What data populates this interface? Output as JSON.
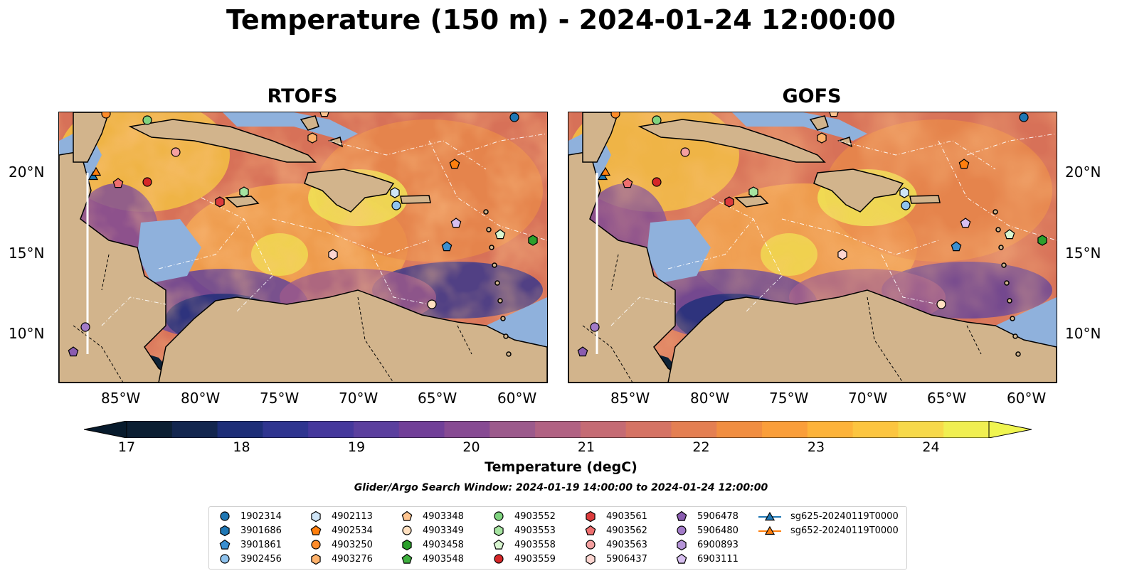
{
  "figure": {
    "title": "Temperature (150 m) - 2024-01-24 12:00:00",
    "search_window": "Glider/Argo Search Window: 2024-01-19 14:00:00 to 2024-01-24 12:00:00"
  },
  "panels": [
    {
      "title": "RTOFS"
    },
    {
      "title": "GOFS"
    }
  ],
  "axes": {
    "lon_ticks": [
      "85°W",
      "80°W",
      "75°W",
      "70°W",
      "65°W",
      "60°W"
    ],
    "lat_ticks": [
      "20°N",
      "15°N",
      "10°N"
    ]
  },
  "colorbar": {
    "label": "Temperature (degC)",
    "ticks": [
      "17",
      "18",
      "19",
      "20",
      "21",
      "22",
      "23",
      "24"
    ],
    "colors": [
      "#0c1f33",
      "#13264f",
      "#1d2e78",
      "#2f3590",
      "#45389c",
      "#5b3f9e",
      "#713f98",
      "#874a93",
      "#9c5a8c",
      "#b16283",
      "#c56b74",
      "#d57364",
      "#e47f52",
      "#f18e41",
      "#fa9e3a",
      "#fdb33a",
      "#fcc540",
      "#f7d94a",
      "#f0ef52"
    ]
  },
  "map_colors": {
    "land": "#d2b48c",
    "shelf": "#8fb1dc",
    "deep_cold": "#0d2236"
  },
  "legend": {
    "items": [
      {
        "label": "1902314",
        "color": "#1f77b4",
        "marker": "circle"
      },
      {
        "label": "3901686",
        "color": "#1f77b4",
        "marker": "hexagon"
      },
      {
        "label": "3901861",
        "color": "#3a8fd0",
        "marker": "pentagon"
      },
      {
        "label": "3902456",
        "color": "#8fc3ee",
        "marker": "circle"
      },
      {
        "label": "4902113",
        "color": "#cfe5f7",
        "marker": "hexagon"
      },
      {
        "label": "4902534",
        "color": "#ff7f0e",
        "marker": "pentagon"
      },
      {
        "label": "4903250",
        "color": "#ff8c2a",
        "marker": "circle"
      },
      {
        "label": "4903276",
        "color": "#ffb26b",
        "marker": "hexagon"
      },
      {
        "label": "4903348",
        "color": "#ffc590",
        "marker": "pentagon"
      },
      {
        "label": "4903349",
        "color": "#ffe0c0",
        "marker": "circle"
      },
      {
        "label": "4903458",
        "color": "#2ca02c",
        "marker": "hexagon"
      },
      {
        "label": "4903548",
        "color": "#3fb03f",
        "marker": "pentagon"
      },
      {
        "label": "4903552",
        "color": "#7fd37f",
        "marker": "circle"
      },
      {
        "label": "4903553",
        "color": "#a5e3a0",
        "marker": "hexagon"
      },
      {
        "label": "4903558",
        "color": "#d8f5d0",
        "marker": "pentagon"
      },
      {
        "label": "4903559",
        "color": "#d62728",
        "marker": "circle"
      },
      {
        "label": "4903561",
        "color": "#dc3b3c",
        "marker": "hexagon"
      },
      {
        "label": "4903562",
        "color": "#ee6f6f",
        "marker": "pentagon"
      },
      {
        "label": "4903563",
        "color": "#f4a0a0",
        "marker": "circle"
      },
      {
        "label": "5906437",
        "color": "#fcd5d0",
        "marker": "hexagon"
      },
      {
        "label": "5906478",
        "color": "#8a5cb0",
        "marker": "pentagon"
      },
      {
        "label": "5906480",
        "color": "#a27bc8",
        "marker": "circle"
      },
      {
        "label": "6900893",
        "color": "#b594d8",
        "marker": "hexagon"
      },
      {
        "label": "6903111",
        "color": "#d7bff0",
        "marker": "pentagon"
      },
      {
        "label": "sg625-20240119T0000",
        "color": "#1f77b4",
        "marker": "triangle-line"
      },
      {
        "label": "sg652-20240119T0000",
        "color": "#ff7f0e",
        "marker": "triangle-line"
      }
    ]
  }
}
